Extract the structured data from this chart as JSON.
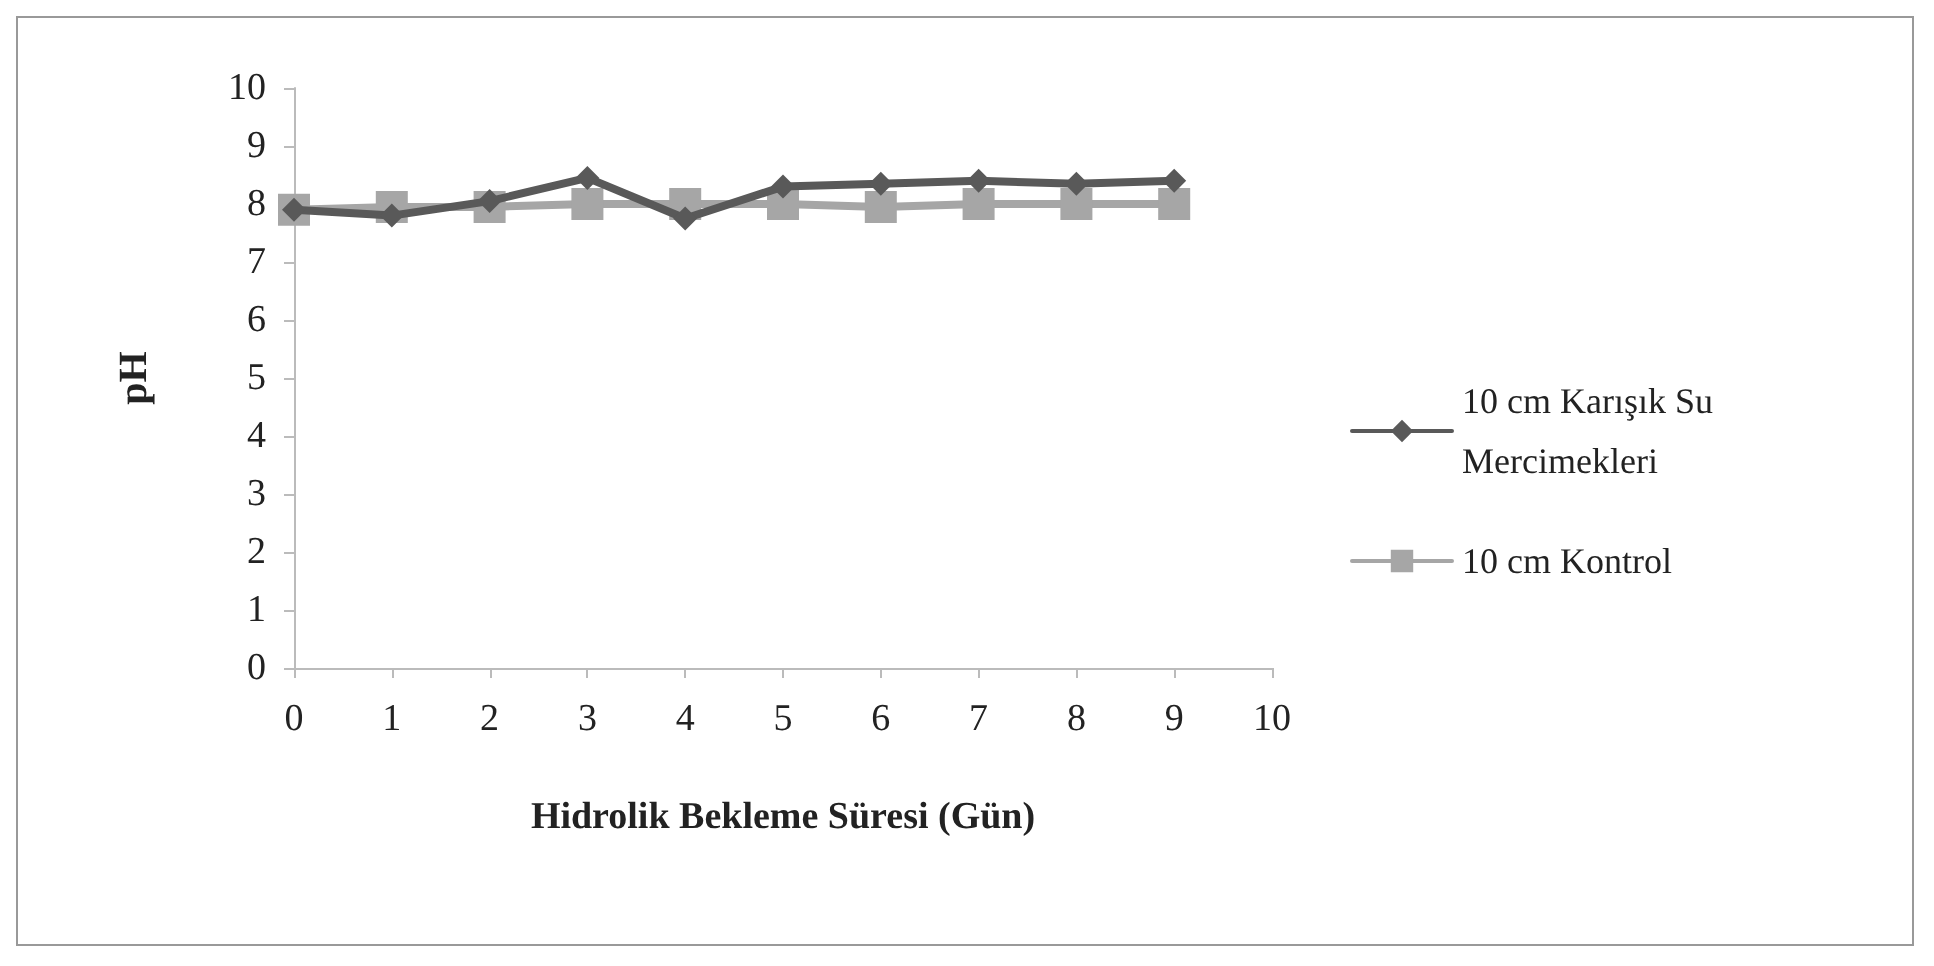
{
  "chart_data": {
    "type": "line",
    "xlabel": "Hidrolik Bekleme Süresi (Gün)",
    "ylabel": "pH",
    "x": [
      0,
      1,
      2,
      3,
      4,
      5,
      6,
      7,
      8,
      9
    ],
    "series": [
      {
        "name": "10 cm Karışık Su Mercimekleri",
        "color": "#595959",
        "marker": "diamond",
        "values": [
          7.9,
          7.8,
          8.05,
          8.45,
          7.75,
          8.3,
          8.35,
          8.4,
          8.35,
          8.4
        ]
      },
      {
        "name": "10 cm Kontrol",
        "color": "#a6a6a6",
        "marker": "square",
        "values": [
          7.9,
          7.95,
          7.95,
          8.0,
          8.0,
          8.0,
          7.95,
          8.0,
          8.0,
          8.0
        ]
      }
    ],
    "xlim": [
      0,
      10
    ],
    "xticks": [
      0,
      1,
      2,
      3,
      4,
      5,
      6,
      7,
      8,
      9,
      10
    ],
    "ylim": [
      0,
      10
    ],
    "yticks": [
      0,
      1,
      2,
      3,
      4,
      5,
      6,
      7,
      8,
      9,
      10
    ],
    "grid": false,
    "legend": "right",
    "line_style": "solid"
  }
}
